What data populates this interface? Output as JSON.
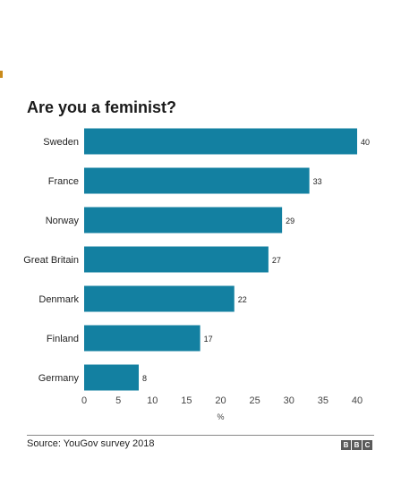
{
  "chart_data": {
    "type": "bar",
    "orientation": "horizontal",
    "title": "Are you a feminist?",
    "xlabel": "%",
    "categories": [
      "Sweden",
      "France",
      "Norway",
      "Great Britain",
      "Denmark",
      "Finland",
      "Germany"
    ],
    "values": [
      40,
      33,
      29,
      27,
      22,
      17,
      8
    ],
    "xlim": [
      0,
      40
    ],
    "xticks": [
      0,
      5,
      10,
      15,
      20,
      25,
      30,
      35,
      40
    ],
    "grid": false,
    "legend": "none",
    "bar_color": "#1380a1"
  },
  "footer": {
    "source": "Source: YouGov survey 2018",
    "logo_text": "BBC"
  }
}
